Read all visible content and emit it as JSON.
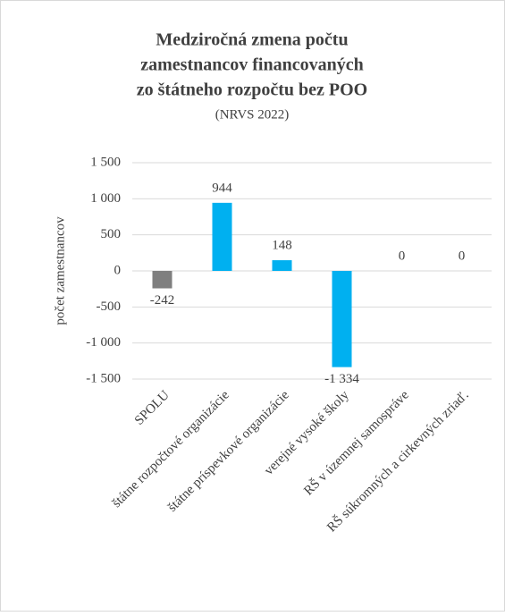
{
  "chart_data": {
    "type": "bar",
    "title": [
      "Medziročná zmena počtu",
      "zamestnancov financovaných",
      "zo štátneho rozpočtu bez POO"
    ],
    "subtitle": "(NRVS 2022)",
    "y_label": "počet zamestnancov",
    "categories": [
      "SPOLU",
      "štátne rozpočtové organizácie",
      "štátne príspevkové organizácie",
      "verejné vysoké školy",
      "RŠ v územnej samospráve",
      "RŠ súkromných a cirkevných zriaď."
    ],
    "values": [
      -242,
      944,
      148,
      -1334,
      0,
      0
    ],
    "value_labels": [
      "-242",
      "944",
      "148",
      "-1 334",
      "0",
      "0"
    ],
    "colors": [
      "#7f7f7f",
      "#00b0f0",
      "#00b0f0",
      "#00b0f0",
      "#00b0f0",
      "#00b0f0"
    ],
    "ylim": [
      -1500,
      1500
    ],
    "yticks": [
      {
        "value": -1500,
        "label": "-1 500"
      },
      {
        "value": -1000,
        "label": "-1 000"
      },
      -500,
      0,
      500,
      {
        "value": 1000,
        "label": "1 000"
      },
      {
        "value": 1500,
        "label": "1 500"
      }
    ],
    "grid": true
  }
}
